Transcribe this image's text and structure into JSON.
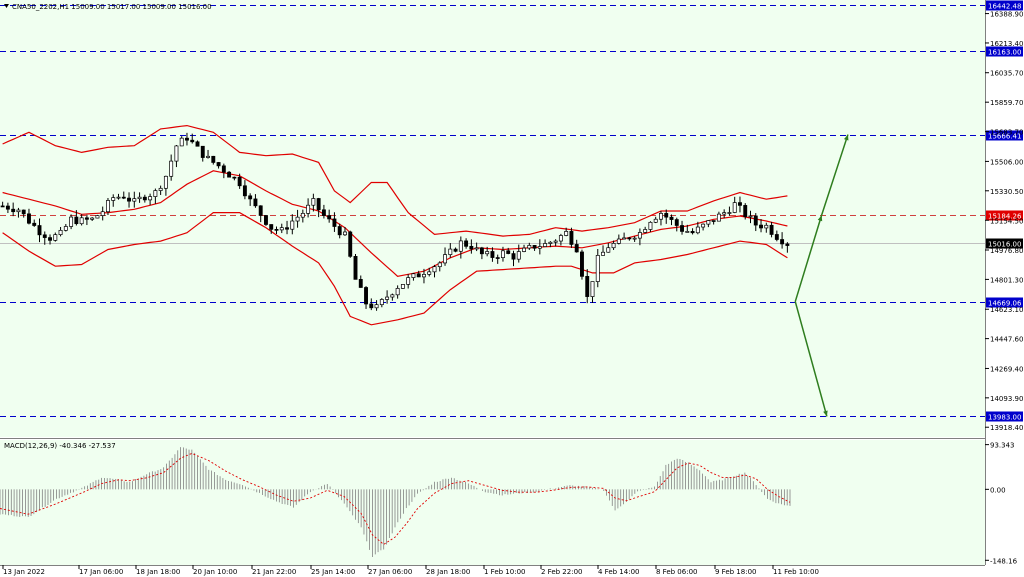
{
  "header": {
    "symbol_line": "CNA50_2202,H1  15009.00 15017.00 15009.00 15016.00",
    "macd_label": "MACD(12,26,9) -40.346 -27.537"
  },
  "colors": {
    "background": "#f0fff0",
    "candle": "#000000",
    "bollinger": "#e00000",
    "level_line": "#0000cc",
    "resistance_line": "#d04040",
    "arrow": "#2e7d1e",
    "macd_hist": "#808080",
    "macd_signal": "#e00000"
  },
  "chart_data": [
    {
      "type": "line",
      "title": "CNA50_2202,H1",
      "y_axis": {
        "ticks": [
          "16388.90",
          "16213.40",
          "16035.70",
          "15859.70",
          "15683.70",
          "15506.00",
          "15330.50",
          "15154.50",
          "14976.80",
          "14801.30",
          "14623.10",
          "14447.60",
          "14269.40",
          "14093.90",
          "13918.40"
        ],
        "range": [
          13860,
          16470
        ]
      },
      "x_axis": {
        "ticks": [
          "13 Jan 2022",
          "17 Jan 06:00",
          "18 Jan 18:00",
          "20 Jan 10:00",
          "21 Jan 22:00",
          "25 Jan 14:00",
          "27 Jan 06:00",
          "28 Jan 18:00",
          "1 Feb 10:00",
          "2 Feb 22:00",
          "4 Feb 14:00",
          "8 Feb 06:00",
          "9 Feb 18:00",
          "11 Feb 10:00"
        ]
      },
      "levels": [
        {
          "name": "16442.48",
          "value": 16442.48,
          "style": "dashed-blue"
        },
        {
          "name": "16163.00",
          "value": 16163.0,
          "style": "dashed-blue"
        },
        {
          "name": "15666.41",
          "value": 15666.41,
          "style": "dashed-blue"
        },
        {
          "name": "15184.26",
          "value": 15184.26,
          "style": "dashed-red"
        },
        {
          "name": "15016.00",
          "value": 15016.0,
          "style": "current"
        },
        {
          "name": "14669.06",
          "value": 14669.06,
          "style": "dashed-blue"
        },
        {
          "name": "13983.00",
          "value": 13983.0,
          "style": "dashed-blue"
        }
      ],
      "price_path": [
        [
          0,
          15240
        ],
        [
          3,
          15220
        ],
        [
          5,
          15150
        ],
        [
          7,
          15090
        ],
        [
          9,
          15050
        ],
        [
          11,
          15070
        ],
        [
          13,
          15160
        ],
        [
          15,
          15150
        ],
        [
          17,
          15160
        ],
        [
          19,
          15210
        ],
        [
          21,
          15290
        ],
        [
          23,
          15300
        ],
        [
          25,
          15260
        ],
        [
          27,
          15300
        ],
        [
          29,
          15320
        ],
        [
          31,
          15420
        ],
        [
          33,
          15600
        ],
        [
          35,
          15650
        ],
        [
          37,
          15580
        ],
        [
          39,
          15520
        ],
        [
          41,
          15480
        ],
        [
          43,
          15430
        ],
        [
          45,
          15380
        ],
        [
          47,
          15270
        ],
        [
          49,
          15190
        ],
        [
          51,
          15110
        ],
        [
          53,
          15090
        ],
        [
          55,
          15150
        ],
        [
          57,
          15200
        ],
        [
          59,
          15260
        ],
        [
          61,
          15180
        ],
        [
          63,
          15120
        ],
        [
          65,
          15060
        ],
        [
          67,
          14800
        ],
        [
          69,
          14660
        ],
        [
          71,
          14630
        ],
        [
          73,
          14700
        ],
        [
          75,
          14760
        ],
        [
          77,
          14800
        ],
        [
          79,
          14830
        ],
        [
          81,
          14870
        ],
        [
          83,
          14900
        ],
        [
          85,
          14960
        ],
        [
          87,
          15020
        ],
        [
          89,
          15000
        ],
        [
          91,
          14950
        ],
        [
          93,
          14940
        ],
        [
          95,
          14960
        ],
        [
          97,
          14940
        ],
        [
          99,
          14970
        ],
        [
          101,
          15000
        ],
        [
          103,
          15010
        ],
        [
          105,
          15040
        ],
        [
          107,
          15080
        ],
        [
          109,
          14990
        ],
        [
          111,
          14690
        ],
        [
          113,
          14920
        ],
        [
          115,
          15000
        ],
        [
          117,
          15020
        ],
        [
          119,
          15060
        ],
        [
          121,
          15080
        ],
        [
          123,
          15160
        ],
        [
          125,
          15200
        ],
        [
          127,
          15150
        ],
        [
          129,
          15100
        ],
        [
          131,
          15080
        ],
        [
          133,
          15120
        ],
        [
          135,
          15160
        ],
        [
          137,
          15200
        ],
        [
          139,
          15250
        ],
        [
          141,
          15190
        ],
        [
          143,
          15130
        ],
        [
          145,
          15120
        ],
        [
          147,
          15060
        ],
        [
          149,
          15016
        ]
      ],
      "bollinger_upper": [
        [
          0,
          15610
        ],
        [
          5,
          15680
        ],
        [
          10,
          15600
        ],
        [
          15,
          15560
        ],
        [
          20,
          15590
        ],
        [
          25,
          15600
        ],
        [
          30,
          15700
        ],
        [
          35,
          15720
        ],
        [
          40,
          15680
        ],
        [
          45,
          15560
        ],
        [
          50,
          15540
        ],
        [
          55,
          15550
        ],
        [
          60,
          15500
        ],
        [
          63,
          15330
        ],
        [
          66,
          15260
        ],
        [
          70,
          15380
        ],
        [
          73,
          15380
        ],
        [
          77,
          15200
        ],
        [
          82,
          15070
        ],
        [
          88,
          15090
        ],
        [
          95,
          15060
        ],
        [
          100,
          15070
        ],
        [
          105,
          15110
        ],
        [
          110,
          15090
        ],
        [
          115,
          15110
        ],
        [
          120,
          15140
        ],
        [
          125,
          15210
        ],
        [
          130,
          15210
        ],
        [
          135,
          15270
        ],
        [
          140,
          15320
        ],
        [
          145,
          15280
        ],
        [
          149,
          15300
        ]
      ],
      "bollinger_middle": [
        [
          0,
          15320
        ],
        [
          10,
          15240
        ],
        [
          15,
          15190
        ],
        [
          20,
          15200
        ],
        [
          25,
          15220
        ],
        [
          30,
          15260
        ],
        [
          35,
          15370
        ],
        [
          40,
          15450
        ],
        [
          45,
          15420
        ],
        [
          50,
          15330
        ],
        [
          55,
          15250
        ],
        [
          60,
          15210
        ],
        [
          65,
          15110
        ],
        [
          70,
          14960
        ],
        [
          75,
          14820
        ],
        [
          80,
          14850
        ],
        [
          85,
          14930
        ],
        [
          90,
          14990
        ],
        [
          95,
          14980
        ],
        [
          100,
          14990
        ],
        [
          105,
          15000
        ],
        [
          110,
          14990
        ],
        [
          115,
          15020
        ],
        [
          120,
          15060
        ],
        [
          125,
          15100
        ],
        [
          130,
          15120
        ],
        [
          135,
          15160
        ],
        [
          140,
          15180
        ],
        [
          145,
          15150
        ],
        [
          149,
          15120
        ]
      ],
      "bollinger_lower": [
        [
          0,
          15080
        ],
        [
          5,
          14970
        ],
        [
          10,
          14880
        ],
        [
          15,
          14890
        ],
        [
          20,
          14980
        ],
        [
          25,
          15010
        ],
        [
          30,
          15030
        ],
        [
          35,
          15080
        ],
        [
          40,
          15200
        ],
        [
          45,
          15200
        ],
        [
          50,
          15110
        ],
        [
          55,
          15000
        ],
        [
          60,
          14900
        ],
        [
          63,
          14760
        ],
        [
          66,
          14580
        ],
        [
          70,
          14530
        ],
        [
          75,
          14560
        ],
        [
          80,
          14600
        ],
        [
          85,
          14740
        ],
        [
          90,
          14850
        ],
        [
          95,
          14860
        ],
        [
          100,
          14870
        ],
        [
          105,
          14880
        ],
        [
          108,
          14880
        ],
        [
          112,
          14840
        ],
        [
          116,
          14840
        ],
        [
          120,
          14900
        ],
        [
          125,
          14920
        ],
        [
          130,
          14950
        ],
        [
          135,
          14990
        ],
        [
          140,
          15030
        ],
        [
          145,
          15010
        ],
        [
          149,
          14930
        ]
      ],
      "projection_arrows": [
        {
          "from": [
            150.5,
            14669.06
          ],
          "to": [
            155.5,
            15184.26
          ],
          "direction": "up"
        },
        {
          "from": [
            155.5,
            15184.26
          ],
          "to": [
            160.5,
            15666.41
          ],
          "direction": "up"
        },
        {
          "from": [
            150.5,
            14669.06
          ],
          "to": [
            156.5,
            13983.0
          ],
          "direction": "down"
        }
      ]
    },
    {
      "type": "bar",
      "title": "MACD(12,26,9)",
      "y_axis": {
        "ticks": [
          "93.343",
          "0.00",
          "-148.16"
        ],
        "range": [
          -158,
          103
        ]
      },
      "histogram": [
        [
          0,
          -52
        ],
        [
          5,
          -58
        ],
        [
          10,
          -20
        ],
        [
          15,
          5
        ],
        [
          18,
          25
        ],
        [
          21,
          20
        ],
        [
          23,
          15
        ],
        [
          26,
          32
        ],
        [
          29,
          45
        ],
        [
          32,
          88
        ],
        [
          34,
          82
        ],
        [
          37,
          42
        ],
        [
          40,
          20
        ],
        [
          43,
          10
        ],
        [
          46,
          -8
        ],
        [
          49,
          -25
        ],
        [
          52,
          -38
        ],
        [
          55,
          -5
        ],
        [
          58,
          12
        ],
        [
          61,
          -30
        ],
        [
          64,
          -80
        ],
        [
          66,
          -140
        ],
        [
          68,
          -125
        ],
        [
          70,
          -80
        ],
        [
          72,
          -40
        ],
        [
          74,
          -10
        ],
        [
          77,
          15
        ],
        [
          80,
          25
        ],
        [
          83,
          12
        ],
        [
          86,
          -5
        ],
        [
          89,
          -12
        ],
        [
          92,
          -8
        ],
        [
          95,
          -5
        ],
        [
          98,
          2
        ],
        [
          101,
          8
        ],
        [
          104,
          5
        ],
        [
          107,
          -2
        ],
        [
          109,
          -45
        ],
        [
          111,
          -25
        ],
        [
          113,
          -5
        ],
        [
          116,
          5
        ],
        [
          118,
          50
        ],
        [
          120,
          65
        ],
        [
          122,
          55
        ],
        [
          124,
          40
        ],
        [
          126,
          15
        ],
        [
          128,
          20
        ],
        [
          130,
          28
        ],
        [
          132,
          35
        ],
        [
          134,
          10
        ],
        [
          136,
          -20
        ],
        [
          138,
          -30
        ],
        [
          140,
          -35
        ]
      ],
      "signal": [
        [
          0,
          -40
        ],
        [
          5,
          -52
        ],
        [
          10,
          -30
        ],
        [
          15,
          -5
        ],
        [
          18,
          12
        ],
        [
          21,
          20
        ],
        [
          23,
          18
        ],
        [
          26,
          24
        ],
        [
          29,
          35
        ],
        [
          32,
          65
        ],
        [
          34,
          75
        ],
        [
          37,
          60
        ],
        [
          40,
          38
        ],
        [
          43,
          20
        ],
        [
          46,
          5
        ],
        [
          49,
          -12
        ],
        [
          52,
          -25
        ],
        [
          55,
          -18
        ],
        [
          58,
          -2
        ],
        [
          61,
          -15
        ],
        [
          64,
          -50
        ],
        [
          66,
          -95
        ],
        [
          68,
          -115
        ],
        [
          70,
          -100
        ],
        [
          72,
          -72
        ],
        [
          74,
          -40
        ],
        [
          77,
          -8
        ],
        [
          80,
          12
        ],
        [
          83,
          18
        ],
        [
          86,
          8
        ],
        [
          89,
          -2
        ],
        [
          92,
          -6
        ],
        [
          95,
          -6
        ],
        [
          98,
          -2
        ],
        [
          101,
          4
        ],
        [
          104,
          5
        ],
        [
          107,
          2
        ],
        [
          109,
          -18
        ],
        [
          111,
          -24
        ],
        [
          113,
          -16
        ],
        [
          116,
          -5
        ],
        [
          118,
          20
        ],
        [
          120,
          45
        ],
        [
          122,
          55
        ],
        [
          124,
          50
        ],
        [
          126,
          35
        ],
        [
          128,
          25
        ],
        [
          130,
          25
        ],
        [
          132,
          30
        ],
        [
          134,
          22
        ],
        [
          136,
          0
        ],
        [
          138,
          -15
        ],
        [
          140,
          -27
        ]
      ]
    }
  ]
}
